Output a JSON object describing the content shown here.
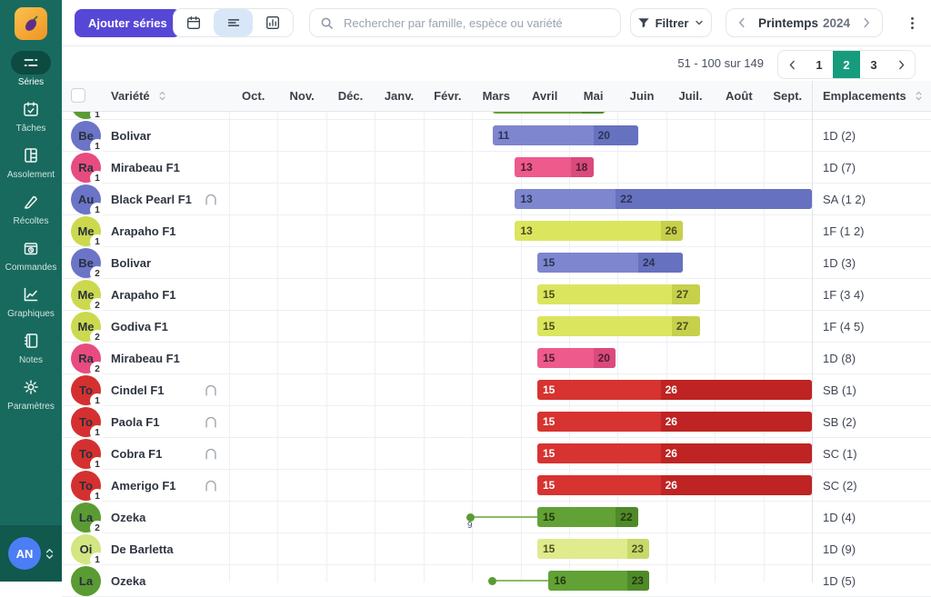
{
  "sidebar": {
    "items": [
      {
        "label": "Séries",
        "icon": "series-icon",
        "active": true
      },
      {
        "label": "Tâches",
        "icon": "tasks-icon",
        "active": false
      },
      {
        "label": "Assolement",
        "icon": "rotation-icon",
        "active": false
      },
      {
        "label": "Récoltes",
        "icon": "harvest-icon",
        "active": false
      },
      {
        "label": "Commandes",
        "icon": "orders-icon",
        "active": false
      },
      {
        "label": "Graphiques",
        "icon": "charts-icon",
        "active": false
      },
      {
        "label": "Notes",
        "icon": "notes-icon",
        "active": false
      },
      {
        "label": "Paramètres",
        "icon": "settings-icon",
        "active": false
      }
    ],
    "user": {
      "initials": "AN"
    }
  },
  "toolbar": {
    "add_button": "Ajouter séries",
    "view_toggles": [
      {
        "icon": "calendar-icon",
        "active": false
      },
      {
        "icon": "list-icon",
        "active": true
      },
      {
        "icon": "chart-icon",
        "active": false
      }
    ],
    "search_placeholder": "Rechercher par famille, espèce ou variété",
    "filter_label": "Filtrer",
    "season": {
      "name": "Printemps",
      "year": "2024"
    }
  },
  "pagination": {
    "range_text": "51 - 100 sur 149",
    "pages": [
      "1",
      "2",
      "3"
    ],
    "active_page": "2"
  },
  "table": {
    "variety_header": "Variété",
    "emplacements_header": "Emplacements",
    "months": [
      "Oct.",
      "Nov.",
      "Déc.",
      "Janv.",
      "Févr.",
      "Mars",
      "Avril",
      "Mai",
      "Juin",
      "Juil.",
      "Août",
      "Sept."
    ],
    "rows": [
      {
        "variety": "",
        "initials": "",
        "series": "1",
        "palette": "green",
        "tunnel": false,
        "dot": null,
        "bar": {
          "start": 11,
          "harvest": 19,
          "end": 21,
          "start_label": "",
          "harvest_label": ""
        },
        "emplacement": "",
        "partial": true
      },
      {
        "variety": "Bolivar",
        "initials": "Be",
        "series": "1",
        "palette": "purple",
        "tunnel": false,
        "dot": null,
        "bar": {
          "start": 11,
          "harvest": 20,
          "end": 24,
          "start_label": "11",
          "harvest_label": "20"
        },
        "emplacement": "1D (2)"
      },
      {
        "variety": "Mirabeau F1",
        "initials": "Ra",
        "series": "1",
        "palette": "pink",
        "tunnel": false,
        "dot": null,
        "bar": {
          "start": 13,
          "harvest": 18,
          "end": 20,
          "start_label": "13",
          "harvest_label": "18"
        },
        "emplacement": "1D (7)"
      },
      {
        "variety": "Black Pearl F1",
        "initials": "Au",
        "series": "1",
        "palette": "purple",
        "tunnel": true,
        "dot": null,
        "bar": {
          "start": 13,
          "harvest": 22,
          "end": 39.5,
          "start_label": "13",
          "harvest_label": "22"
        },
        "emplacement": "SA (1 2)"
      },
      {
        "variety": "Arapaho F1",
        "initials": "Me",
        "series": "1",
        "palette": "yellow",
        "tunnel": false,
        "dot": null,
        "bar": {
          "start": 13,
          "harvest": 26,
          "end": 28,
          "start_label": "13",
          "harvest_label": "26"
        },
        "emplacement": "1F (1 2)"
      },
      {
        "variety": "Bolivar",
        "initials": "Be",
        "series": "2",
        "palette": "purple",
        "tunnel": false,
        "dot": null,
        "bar": {
          "start": 15,
          "harvest": 24,
          "end": 28,
          "start_label": "15",
          "harvest_label": "24"
        },
        "emplacement": "1D (3)"
      },
      {
        "variety": "Arapaho F1",
        "initials": "Me",
        "series": "2",
        "palette": "yellow",
        "tunnel": false,
        "dot": null,
        "bar": {
          "start": 15,
          "harvest": 27,
          "end": 29.5,
          "start_label": "15",
          "harvest_label": "27"
        },
        "emplacement": "1F (3 4)"
      },
      {
        "variety": "Godiva F1",
        "initials": "Me",
        "series": "2",
        "palette": "yellow",
        "tunnel": false,
        "dot": null,
        "bar": {
          "start": 15,
          "harvest": 27,
          "end": 29.5,
          "start_label": "15",
          "harvest_label": "27"
        },
        "emplacement": "1F (4 5)"
      },
      {
        "variety": "Mirabeau F1",
        "initials": "Ra",
        "series": "2",
        "palette": "pink",
        "tunnel": false,
        "dot": null,
        "bar": {
          "start": 15,
          "harvest": 20,
          "end": 22,
          "start_label": "15",
          "harvest_label": "20"
        },
        "emplacement": "1D (8)"
      },
      {
        "variety": "Cindel F1",
        "initials": "To",
        "series": "1",
        "palette": "red",
        "tunnel": true,
        "dot": null,
        "bar": {
          "start": 15,
          "harvest": 26,
          "end": 39.5,
          "start_label": "15",
          "harvest_label": "26"
        },
        "emplacement": "SB (1)"
      },
      {
        "variety": "Paola F1",
        "initials": "To",
        "series": "1",
        "palette": "red",
        "tunnel": true,
        "dot": null,
        "bar": {
          "start": 15,
          "harvest": 26,
          "end": 39.5,
          "start_label": "15",
          "harvest_label": "26"
        },
        "emplacement": "SB (2)"
      },
      {
        "variety": "Cobra F1",
        "initials": "To",
        "series": "1",
        "palette": "red",
        "tunnel": true,
        "dot": null,
        "bar": {
          "start": 15,
          "harvest": 26,
          "end": 39.5,
          "start_label": "15",
          "harvest_label": "26"
        },
        "emplacement": "SC (1)"
      },
      {
        "variety": "Amerigo F1",
        "initials": "To",
        "series": "1",
        "palette": "red",
        "tunnel": true,
        "dot": null,
        "bar": {
          "start": 15,
          "harvest": 26,
          "end": 39.5,
          "start_label": "15",
          "harvest_label": "26"
        },
        "emplacement": "SC (2)"
      },
      {
        "variety": "Ozeka",
        "initials": "La",
        "series": "2",
        "palette": "green",
        "tunnel": false,
        "dot": {
          "week": 9,
          "label": "9"
        },
        "bar": {
          "start": 15,
          "harvest": 22,
          "end": 24,
          "start_label": "15",
          "harvest_label": "22"
        },
        "emplacement": "1D (4)"
      },
      {
        "variety": "De Barletta",
        "initials": "Oi",
        "series": "1",
        "palette": "lightgreen",
        "tunnel": false,
        "dot": null,
        "bar": {
          "start": 15,
          "harvest": 23,
          "end": 25,
          "start_label": "15",
          "harvest_label": "23"
        },
        "emplacement": "1D (9)"
      },
      {
        "variety": "Ozeka",
        "initials": "La",
        "series": "",
        "palette": "green",
        "tunnel": false,
        "dot": {
          "week": 11,
          "label": ""
        },
        "bar": {
          "start": 16,
          "harvest": 23,
          "end": 25,
          "start_label": "16",
          "harvest_label": "23"
        },
        "emplacement": "1D (5)"
      }
    ]
  },
  "colors": {
    "sidebar_bg": "#186a5e",
    "sidebar_active_bg": "#0d4a41",
    "sidebar_footer_bg": "#11584d",
    "accent_purple": "#5747d6",
    "accent_teal": "#169c7d",
    "toggle_active_bg": "#d8e7f8",
    "user_avatar_bg": "#4b7ef5",
    "palettes": {
      "purple": {
        "avatar": "#6b74c7",
        "bar": "#7d86ce",
        "bar_dark": "#6671bf",
        "text": "#2d3352"
      },
      "pink": {
        "avatar": "#e84b80",
        "bar": "#ee5a8c",
        "bar_dark": "#da4a7c",
        "text": "#4b1d30"
      },
      "yellow": {
        "avatar": "#ccd94e",
        "bar": "#dbe55e",
        "bar_dark": "#c6d04b",
        "text": "#4a4d1d"
      },
      "red": {
        "avatar": "#d53030",
        "bar": "#d63331",
        "bar_dark": "#be2423",
        "text": "#ffffff"
      },
      "green": {
        "avatar": "#5a9b33",
        "bar": "#61a135",
        "bar_dark": "#4f8a28",
        "text": "#24380f"
      },
      "lightgreen": {
        "avatar": "#d3e681",
        "bar": "#dfeb8d",
        "bar_dark": "#c9d86c",
        "text": "#4c521f"
      }
    }
  }
}
